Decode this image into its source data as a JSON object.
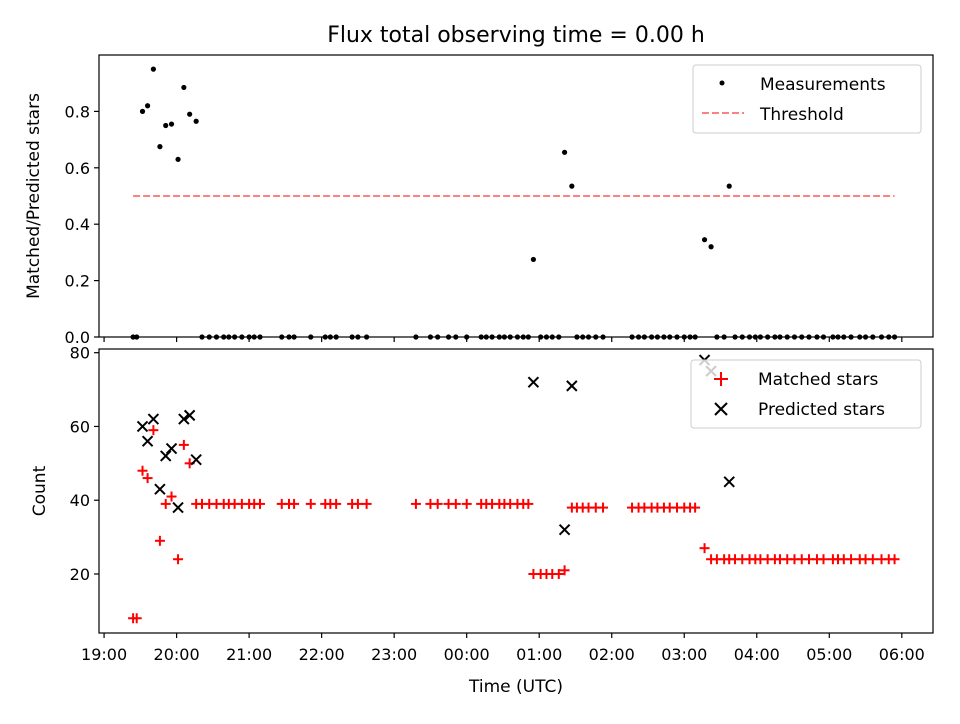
{
  "figure": {
    "title": "Flux total observing time = 0.00 h",
    "xlabel": "Time (UTC)",
    "colors": {
      "measurement": "#000000",
      "threshold": "#ff8080",
      "matched": "#ff0000",
      "predicted": "#000000",
      "axis": "#000000"
    }
  },
  "chart_data": [
    {
      "type": "scatter",
      "id": "ratio",
      "title": "Flux total observing time = 0.00 h",
      "ylabel": "Matched/Predicted stars",
      "xlim": [
        18.93,
        30.43
      ],
      "ylim": [
        0,
        1.0
      ],
      "yticks": [
        0.0,
        0.2,
        0.4,
        0.6,
        0.8
      ],
      "ytick_labels": [
        "0.0",
        "0.2",
        "0.4",
        "0.6",
        "0.8"
      ],
      "legend": [
        "Measurements",
        "Threshold"
      ],
      "legend_loc": "upper right",
      "threshold": {
        "value": 0.5,
        "x": [
          19.4,
          29.9
        ]
      },
      "series": [
        {
          "name": "Measurements",
          "points": [
            [
              19.4,
              0
            ],
            [
              19.45,
              0
            ],
            [
              19.53,
              0.8
            ],
            [
              19.6,
              0.82
            ],
            [
              19.68,
              0.95
            ],
            [
              19.77,
              0.675
            ],
            [
              19.85,
              0.75
            ],
            [
              19.93,
              0.755
            ],
            [
              20.02,
              0.63
            ],
            [
              20.1,
              0.885
            ],
            [
              20.18,
              0.79
            ],
            [
              20.27,
              0.765
            ],
            [
              20.35,
              0
            ],
            [
              20.45,
              0
            ],
            [
              20.55,
              0
            ],
            [
              20.65,
              0
            ],
            [
              20.72,
              0
            ],
            [
              20.8,
              0
            ],
            [
              20.9,
              0
            ],
            [
              21.0,
              0
            ],
            [
              21.07,
              0
            ],
            [
              21.15,
              0
            ],
            [
              21.45,
              0
            ],
            [
              21.55,
              0
            ],
            [
              21.62,
              0
            ],
            [
              21.85,
              0
            ],
            [
              22.05,
              0
            ],
            [
              22.12,
              0
            ],
            [
              22.2,
              0
            ],
            [
              22.42,
              0
            ],
            [
              22.5,
              0
            ],
            [
              22.62,
              0
            ],
            [
              23.3,
              0
            ],
            [
              23.5,
              0
            ],
            [
              23.6,
              0
            ],
            [
              23.75,
              0
            ],
            [
              23.85,
              0
            ],
            [
              24.0,
              0
            ],
            [
              24.2,
              0
            ],
            [
              24.27,
              0
            ],
            [
              24.35,
              0
            ],
            [
              24.45,
              0
            ],
            [
              24.52,
              0
            ],
            [
              24.6,
              0
            ],
            [
              24.7,
              0
            ],
            [
              24.78,
              0
            ],
            [
              24.85,
              0
            ],
            [
              24.92,
              0.275
            ],
            [
              25.02,
              0
            ],
            [
              25.1,
              0
            ],
            [
              25.18,
              0
            ],
            [
              25.27,
              0
            ],
            [
              25.35,
              0.655
            ],
            [
              25.45,
              0.535
            ],
            [
              25.52,
              0
            ],
            [
              25.6,
              0
            ],
            [
              25.68,
              0
            ],
            [
              25.78,
              0
            ],
            [
              25.88,
              0
            ],
            [
              26.28,
              0
            ],
            [
              26.37,
              0
            ],
            [
              26.45,
              0
            ],
            [
              26.55,
              0
            ],
            [
              26.63,
              0
            ],
            [
              26.72,
              0
            ],
            [
              26.8,
              0
            ],
            [
              26.9,
              0
            ],
            [
              27.0,
              0
            ],
            [
              27.08,
              0
            ],
            [
              27.15,
              0
            ],
            [
              27.28,
              0.345
            ],
            [
              27.37,
              0.32
            ],
            [
              27.45,
              0
            ],
            [
              27.55,
              0
            ],
            [
              27.62,
              0.535
            ],
            [
              27.7,
              0
            ],
            [
              27.8,
              0
            ],
            [
              27.9,
              0
            ],
            [
              27.98,
              0
            ],
            [
              28.05,
              0
            ],
            [
              28.15,
              0
            ],
            [
              28.25,
              0
            ],
            [
              28.32,
              0
            ],
            [
              28.42,
              0
            ],
            [
              28.52,
              0
            ],
            [
              28.62,
              0
            ],
            [
              28.72,
              0
            ],
            [
              28.83,
              0
            ],
            [
              28.92,
              0
            ],
            [
              29.05,
              0
            ],
            [
              29.12,
              0
            ],
            [
              29.2,
              0
            ],
            [
              29.3,
              0
            ],
            [
              29.42,
              0
            ],
            [
              29.5,
              0
            ],
            [
              29.6,
              0
            ],
            [
              29.72,
              0
            ],
            [
              29.82,
              0
            ],
            [
              29.9,
              0
            ]
          ]
        }
      ]
    },
    {
      "type": "scatter",
      "id": "counts",
      "ylabel": "Count",
      "xlabel": "Time (UTC)",
      "xlim": [
        18.93,
        30.43
      ],
      "ylim": [
        4,
        81
      ],
      "yticks": [
        20,
        40,
        60,
        80
      ],
      "ytick_labels": [
        "20",
        "40",
        "60",
        "80"
      ],
      "xticks": [
        19,
        20,
        21,
        22,
        23,
        24,
        25,
        26,
        27,
        28,
        29,
        30
      ],
      "xtick_labels": [
        "19:00",
        "20:00",
        "21:00",
        "22:00",
        "23:00",
        "00:00",
        "01:00",
        "02:00",
        "03:00",
        "04:00",
        "05:00",
        "06:00"
      ],
      "legend": [
        "Matched stars",
        "Predicted stars"
      ],
      "legend_loc": "upper right",
      "series": [
        {
          "name": "Matched stars",
          "points": [
            [
              19.4,
              8
            ],
            [
              19.45,
              8
            ],
            [
              19.53,
              48
            ],
            [
              19.6,
              46
            ],
            [
              19.68,
              59
            ],
            [
              19.77,
              29
            ],
            [
              19.85,
              39
            ],
            [
              19.93,
              41
            ],
            [
              20.02,
              24
            ],
            [
              20.1,
              55
            ],
            [
              20.18,
              50
            ],
            [
              20.27,
              39
            ],
            [
              20.35,
              39
            ],
            [
              20.45,
              39
            ],
            [
              20.55,
              39
            ],
            [
              20.65,
              39
            ],
            [
              20.72,
              39
            ],
            [
              20.8,
              39
            ],
            [
              20.9,
              39
            ],
            [
              21.0,
              39
            ],
            [
              21.07,
              39
            ],
            [
              21.15,
              39
            ],
            [
              21.45,
              39
            ],
            [
              21.55,
              39
            ],
            [
              21.62,
              39
            ],
            [
              21.85,
              39
            ],
            [
              22.05,
              39
            ],
            [
              22.12,
              39
            ],
            [
              22.2,
              39
            ],
            [
              22.42,
              39
            ],
            [
              22.5,
              39
            ],
            [
              22.62,
              39
            ],
            [
              23.3,
              39
            ],
            [
              23.5,
              39
            ],
            [
              23.6,
              39
            ],
            [
              23.75,
              39
            ],
            [
              23.85,
              39
            ],
            [
              24.0,
              39
            ],
            [
              24.2,
              39
            ],
            [
              24.27,
              39
            ],
            [
              24.35,
              39
            ],
            [
              24.45,
              39
            ],
            [
              24.52,
              39
            ],
            [
              24.6,
              39
            ],
            [
              24.7,
              39
            ],
            [
              24.78,
              39
            ],
            [
              24.85,
              39
            ],
            [
              24.92,
              20
            ],
            [
              25.02,
              20
            ],
            [
              25.1,
              20
            ],
            [
              25.18,
              20
            ],
            [
              25.27,
              20
            ],
            [
              25.35,
              21
            ],
            [
              25.45,
              38
            ],
            [
              25.52,
              38
            ],
            [
              25.6,
              38
            ],
            [
              25.68,
              38
            ],
            [
              25.78,
              38
            ],
            [
              25.88,
              38
            ],
            [
              26.28,
              38
            ],
            [
              26.37,
              38
            ],
            [
              26.45,
              38
            ],
            [
              26.55,
              38
            ],
            [
              26.63,
              38
            ],
            [
              26.72,
              38
            ],
            [
              26.8,
              38
            ],
            [
              26.9,
              38
            ],
            [
              27.0,
              38
            ],
            [
              27.08,
              38
            ],
            [
              27.15,
              38
            ],
            [
              27.28,
              27
            ],
            [
              27.37,
              24
            ],
            [
              27.45,
              24
            ],
            [
              27.55,
              24
            ],
            [
              27.62,
              24
            ],
            [
              27.7,
              24
            ],
            [
              27.8,
              24
            ],
            [
              27.9,
              24
            ],
            [
              27.98,
              24
            ],
            [
              28.05,
              24
            ],
            [
              28.15,
              24
            ],
            [
              28.25,
              24
            ],
            [
              28.32,
              24
            ],
            [
              28.42,
              24
            ],
            [
              28.52,
              24
            ],
            [
              28.62,
              24
            ],
            [
              28.72,
              24
            ],
            [
              28.83,
              24
            ],
            [
              28.92,
              24
            ],
            [
              29.05,
              24
            ],
            [
              29.12,
              24
            ],
            [
              29.2,
              24
            ],
            [
              29.3,
              24
            ],
            [
              29.42,
              24
            ],
            [
              29.5,
              24
            ],
            [
              29.6,
              24
            ],
            [
              29.72,
              24
            ],
            [
              29.82,
              24
            ],
            [
              29.9,
              24
            ]
          ]
        },
        {
          "name": "Predicted stars",
          "points": [
            [
              19.53,
              60
            ],
            [
              19.6,
              56
            ],
            [
              19.68,
              62
            ],
            [
              19.77,
              43
            ],
            [
              19.85,
              52
            ],
            [
              19.93,
              54
            ],
            [
              20.02,
              38
            ],
            [
              20.1,
              62
            ],
            [
              20.18,
              63
            ],
            [
              20.27,
              51
            ],
            [
              24.92,
              72
            ],
            [
              25.35,
              32
            ],
            [
              25.45,
              71
            ],
            [
              27.28,
              78
            ],
            [
              27.37,
              75
            ],
            [
              27.62,
              45
            ]
          ]
        }
      ]
    }
  ]
}
